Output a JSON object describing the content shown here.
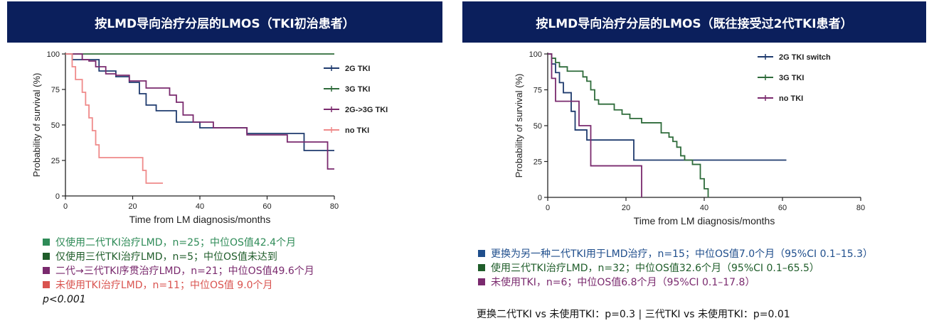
{
  "colors": {
    "header_bg": "#0b1f5c"
  },
  "left": {
    "title": "按LMD导向治疗分层的LMOS（TKI初治患者）",
    "notes": [
      {
        "text": "仅使用二代TKI治疗LMD，n=25；中位OS值42.4个月",
        "color": "#2e8b57"
      },
      {
        "text": "仅使用三代TKI治疗LMD，n=5；中位OS值未达到",
        "color": "#1f5d2a"
      },
      {
        "text": "二代→三代TKI序贯治疗LMD，n=21；中位OS值49.6个月",
        "color": "#7a2a6e"
      },
      {
        "text": "未使用TKI治疗LMD，n=11；中位OS值 9.0个月",
        "color": "#d9534f"
      }
    ],
    "pvalue": "p<0.001"
  },
  "right": {
    "title": "按LMD导向治疗分层的LMOS（既往接受过2代TKI患者）",
    "notes": [
      {
        "text": "更换为另一种二代TKI用于LMD治疗，n=15；中位OS值7.0个月（95%CI 0.1–15.3）",
        "color": "#1f4e8c"
      },
      {
        "text": "使用三代TKI治疗LMD，n=32；中位OS值32.6个月（95%CI 0.1–65.5）",
        "color": "#1f5d2a"
      },
      {
        "text": "未使用TKI，n=6；中位OS值6.8个月（95%CI 0.1–17.8）",
        "color": "#7a2a6e"
      }
    ],
    "footer": "更换二代TKI vs 未使用TKI：p=0.3 | 三代TKI vs 未使用TKI：p=0.01"
  },
  "chart_data": [
    {
      "type": "line",
      "xlabel": "Time from LM diagnosis/months",
      "ylabel": "Probability of survival (%)",
      "xlim": [
        0,
        80
      ],
      "ylim": [
        0,
        100
      ],
      "xticks": [
        "0",
        "20",
        "40",
        "60",
        "80"
      ],
      "yticks": [
        "0",
        "25",
        "50",
        "75",
        "100"
      ],
      "legend": "right",
      "series": [
        {
          "name": "2G TKI",
          "color": "#1f3b6e",
          "x": [
            0,
            2,
            4,
            10,
            15,
            19,
            22,
            24,
            27,
            33,
            40,
            54,
            68,
            71,
            80
          ],
          "y": [
            100,
            96,
            96,
            88,
            84,
            80,
            72,
            64,
            60,
            52,
            48,
            44,
            44,
            32,
            32
          ]
        },
        {
          "name": "3G TKI",
          "color": "#2e6b3a",
          "x": [
            0,
            80
          ],
          "y": [
            100,
            100
          ]
        },
        {
          "name": "2G->3G TKI",
          "color": "#7a2a6e",
          "x": [
            0,
            5,
            7,
            9,
            12,
            15,
            19,
            24,
            31,
            33,
            35,
            38,
            44,
            47,
            54,
            66,
            70,
            78,
            80
          ],
          "y": [
            100,
            96,
            95,
            91,
            86,
            85,
            81,
            76,
            71,
            66,
            57,
            52,
            48,
            48,
            43,
            38,
            38,
            19,
            19
          ]
        },
        {
          "name": "no TKI",
          "color": "#ef8a8a",
          "x": [
            0,
            2,
            3,
            5,
            6,
            7,
            8,
            9,
            10,
            11,
            23,
            24,
            29
          ],
          "y": [
            100,
            91,
            82,
            73,
            64,
            55,
            46,
            36,
            27,
            27,
            18,
            9,
            9
          ]
        }
      ]
    },
    {
      "type": "line",
      "xlabel": "Time from LM diagnosis/months",
      "ylabel": "Probability of survival (%)",
      "xlim": [
        0,
        80
      ],
      "ylim": [
        0,
        100
      ],
      "xticks": [
        "0",
        "20",
        "40",
        "60",
        "80"
      ],
      "yticks": [
        "0",
        "25",
        "50",
        "75",
        "100"
      ],
      "legend": "top-right",
      "series": [
        {
          "name": "2G TKI switch",
          "color": "#1f3b6e",
          "x": [
            0,
            1,
            2,
            3,
            4,
            6,
            7,
            10,
            11,
            20,
            22,
            61
          ],
          "y": [
            100,
            93,
            87,
            80,
            73,
            60,
            47,
            40,
            40,
            40,
            26,
            26
          ]
        },
        {
          "name": "3G TKI",
          "color": "#2e6b3a",
          "x": [
            0,
            1,
            2,
            3,
            5,
            9,
            10,
            11,
            12,
            13,
            17,
            19,
            21,
            24,
            29,
            31,
            32,
            33,
            34,
            35,
            37,
            39,
            40,
            41
          ],
          "y": [
            100,
            97,
            94,
            91,
            88,
            84,
            81,
            75,
            68,
            65,
            61,
            58,
            55,
            52,
            45,
            42,
            39,
            35,
            29,
            26,
            23,
            13,
            6,
            0
          ]
        },
        {
          "name": "no TKI",
          "color": "#7a2a6e",
          "x": [
            0,
            1,
            2,
            8,
            11,
            24,
            24
          ],
          "y": [
            100,
            83,
            67,
            50,
            22,
            22,
            0
          ]
        }
      ]
    }
  ]
}
